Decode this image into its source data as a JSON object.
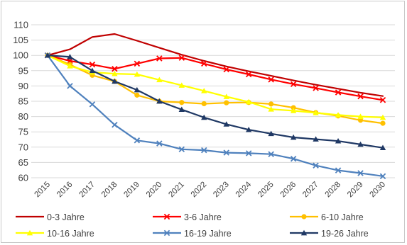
{
  "chart_data": {
    "type": "line",
    "title": "",
    "xlabel": "",
    "ylabel": "",
    "x": [
      "2015",
      "2016",
      "2017",
      "2018",
      "2019",
      "2020",
      "2021",
      "2022",
      "2023",
      "2024",
      "2025",
      "2026",
      "2027",
      "2028",
      "2029",
      "2030"
    ],
    "ylim": [
      60,
      110
    ],
    "yticks": [
      60,
      65,
      70,
      75,
      80,
      85,
      90,
      95,
      100,
      105,
      110
    ],
    "grid": true,
    "legend_position": "bottom",
    "series": [
      {
        "name": "0-3 Jahre",
        "color": "#c00000",
        "marker": "none",
        "values": [
          100,
          102,
          106,
          107,
          104.8,
          102.5,
          100.2,
          98.2,
          96.4,
          94.8,
          93.3,
          91.8,
          90.4,
          89.1,
          87.8,
          86.7
        ]
      },
      {
        "name": "3-6 Jahre",
        "color": "#ff0000",
        "marker": "x",
        "values": [
          100,
          98.2,
          97,
          95.6,
          97.3,
          99,
          99.2,
          97.3,
          95.4,
          93.8,
          92.1,
          90.6,
          89.3,
          87.9,
          86.6,
          85.4
        ]
      },
      {
        "name": "6-10 Jahre",
        "color": "#ffc000",
        "marker": "circle",
        "values": [
          100,
          97,
          93.5,
          91.5,
          87,
          85,
          84.6,
          84.2,
          84.5,
          84.6,
          84.1,
          82.9,
          81.3,
          80.2,
          78.8,
          77.8
        ]
      },
      {
        "name": "10-16 Jahre",
        "color": "#ffff00",
        "marker": "triangle",
        "values": [
          100,
          96.5,
          94.5,
          94,
          93.8,
          92,
          90.2,
          88.4,
          86.5,
          84.8,
          82.4,
          81.9,
          81.2,
          80.5,
          80,
          79.7
        ]
      },
      {
        "name": "16-19 Jahre",
        "color": "#4f81bd",
        "marker": "x",
        "values": [
          100,
          90,
          84,
          77.3,
          72.2,
          71.2,
          69.3,
          69,
          68.2,
          68,
          67.7,
          66.2,
          64,
          62.4,
          61.5,
          60.5
        ]
      },
      {
        "name": "19-26 Jahre",
        "color": "#1f3864",
        "marker": "triangle",
        "values": [
          100,
          99.5,
          95,
          91.5,
          88.7,
          85,
          82.3,
          79.7,
          77.5,
          75.7,
          74.4,
          73.2,
          72.6,
          72,
          70.9,
          69.8
        ]
      }
    ]
  }
}
